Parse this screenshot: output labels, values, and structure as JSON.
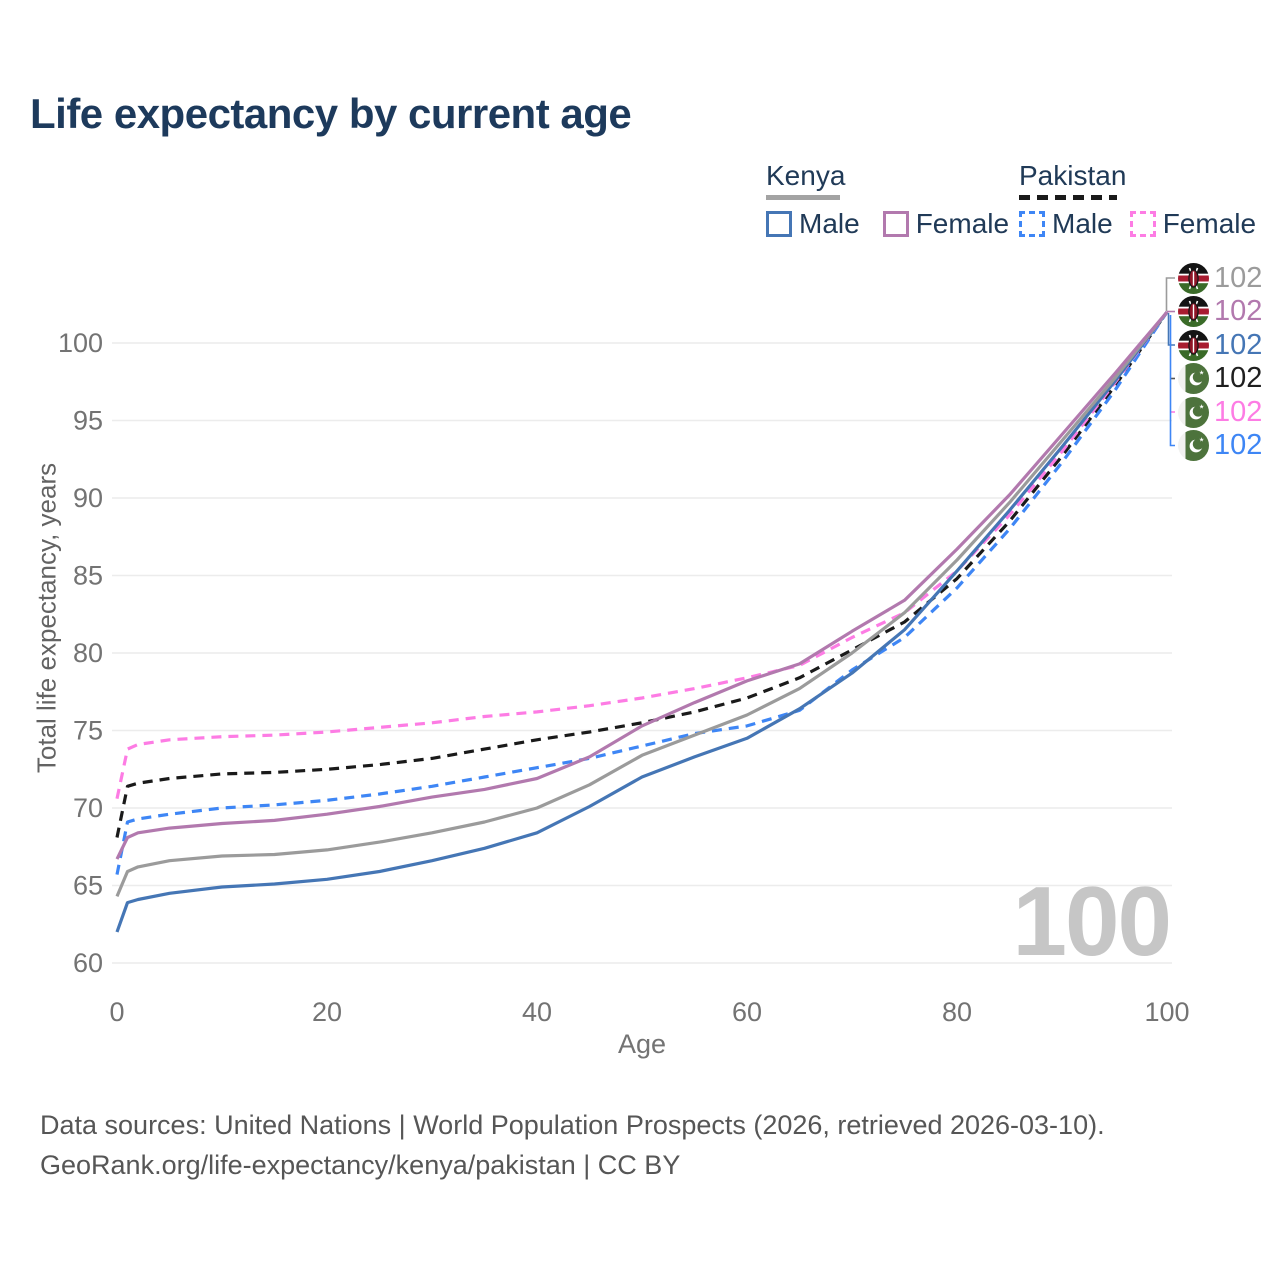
{
  "title": "Life expectancy by current age",
  "watermark": "100",
  "legend": {
    "groups": [
      {
        "name": "Kenya",
        "line_style": "solid",
        "underline_color": "#a3a3a3",
        "items": [
          {
            "label": "Male",
            "color": "#4576b5",
            "dashed": false
          },
          {
            "label": "Female",
            "color": "#b279ae",
            "dashed": false
          }
        ]
      },
      {
        "name": "Pakistan",
        "line_style": "dashed",
        "underline_color": "#1a1a1a",
        "items": [
          {
            "label": "Male",
            "color": "#3e86f5",
            "dashed": true
          },
          {
            "label": "Female",
            "color": "#fd7ce4",
            "dashed": true
          }
        ]
      }
    ]
  },
  "right_labels": [
    {
      "flag": "kenya",
      "series": "Kenya",
      "value": "102",
      "color": "#9b9b9b"
    },
    {
      "flag": "kenya",
      "series": "Kenya Female",
      "value": "102",
      "color": "#b279ae"
    },
    {
      "flag": "kenya",
      "series": "Kenya Male",
      "value": "102",
      "color": "#4576b5"
    },
    {
      "flag": "pakistan",
      "series": "Pakistan",
      "value": "102",
      "color": "#1f1f1f"
    },
    {
      "flag": "pakistan",
      "series": "Pakistan Female",
      "value": "102",
      "color": "#fd7ce4"
    },
    {
      "flag": "pakistan",
      "series": "Pakistan Male",
      "value": "102",
      "color": "#3e86f5"
    }
  ],
  "source": {
    "line1": "Data sources: United Nations | World Population Prospects (2026, retrieved 2026-03-10).",
    "line2": "GeoRank.org/life-expectancy/kenya/pakistan | CC BY"
  },
  "chart_data": {
    "type": "line",
    "title": "Life expectancy by current age",
    "xlabel": "Age",
    "ylabel": "Total life expectancy, years",
    "xlim": [
      0,
      100
    ],
    "ylim": [
      60,
      102
    ],
    "x_ticks": [
      0,
      20,
      40,
      60,
      80,
      100
    ],
    "y_ticks": [
      60,
      65,
      70,
      75,
      80,
      85,
      90,
      95,
      100
    ],
    "grid": "horizontal",
    "legend_position": "top-right",
    "x": [
      0,
      1,
      2,
      5,
      10,
      15,
      20,
      25,
      30,
      35,
      40,
      45,
      50,
      55,
      60,
      65,
      70,
      75,
      80,
      85,
      90,
      95,
      100
    ],
    "series": [
      {
        "name": "Pakistan",
        "color": "#1a1a1a",
        "dashed": true,
        "values": [
          68.1,
          71.4,
          71.6,
          71.9,
          72.2,
          72.3,
          72.5,
          72.8,
          73.2,
          73.8,
          74.4,
          74.9,
          75.5,
          76.2,
          77.1,
          78.4,
          80.2,
          82.0,
          84.8,
          88.5,
          92.7,
          97.2,
          102
        ]
      },
      {
        "name": "Pakistan Male",
        "color": "#3e86f5",
        "dashed": true,
        "values": [
          65.7,
          69.1,
          69.3,
          69.6,
          70.0,
          70.2,
          70.5,
          70.9,
          71.4,
          72.0,
          72.6,
          73.2,
          74.0,
          74.8,
          75.3,
          76.3,
          78.9,
          81.0,
          84.2,
          88.0,
          92.3,
          96.9,
          102
        ]
      },
      {
        "name": "Pakistan Female",
        "color": "#fd7ce4",
        "dashed": true,
        "values": [
          70.6,
          73.8,
          74.1,
          74.4,
          74.6,
          74.7,
          74.9,
          75.2,
          75.5,
          75.9,
          76.2,
          76.6,
          77.1,
          77.7,
          78.4,
          79.2,
          81.0,
          82.6,
          85.3,
          88.9,
          93.0,
          97.4,
          102
        ]
      },
      {
        "name": "Kenya Male",
        "color": "#4576b5",
        "dashed": false,
        "values": [
          62.0,
          63.9,
          64.1,
          64.5,
          64.9,
          65.1,
          65.4,
          65.9,
          66.6,
          67.4,
          68.4,
          70.1,
          72.0,
          73.3,
          74.5,
          76.4,
          78.7,
          81.5,
          85.3,
          89.2,
          93.3,
          97.5,
          102
        ]
      },
      {
        "name": "Kenya",
        "color": "#9b9b9b",
        "dashed": false,
        "values": [
          64.3,
          65.9,
          66.2,
          66.6,
          66.9,
          67.0,
          67.3,
          67.8,
          68.4,
          69.1,
          70.0,
          71.5,
          73.4,
          74.7,
          76.0,
          77.7,
          80.0,
          82.6,
          86.0,
          89.7,
          93.7,
          97.7,
          102
        ]
      },
      {
        "name": "Kenya Female",
        "color": "#b279ae",
        "dashed": false,
        "values": [
          66.7,
          68.1,
          68.4,
          68.7,
          69.0,
          69.2,
          69.6,
          70.1,
          70.7,
          71.2,
          71.9,
          73.3,
          75.3,
          76.8,
          78.2,
          79.3,
          81.4,
          83.4,
          86.7,
          90.2,
          94.1,
          98.0,
          102
        ]
      }
    ]
  }
}
